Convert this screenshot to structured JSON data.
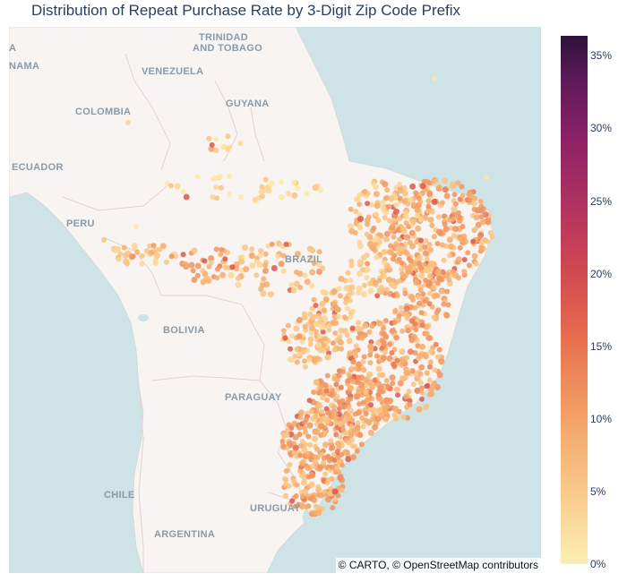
{
  "title": "Distribution of Repeat Purchase Rate by 3-Digit Zip Code Prefix",
  "map": {
    "basemap": "carto-positron",
    "attribution": "© CARTO, © OpenStreetMap contributors",
    "country_labels": [
      {
        "id": "trinidad",
        "text": "TRINIDAD"
      },
      {
        "id": "tobago",
        "text": "AND TOBAGO"
      },
      {
        "id": "panama",
        "text": "NAMA"
      },
      {
        "id": "a",
        "text": "A"
      },
      {
        "id": "venezuela",
        "text": "VENEZUELA"
      },
      {
        "id": "guyana",
        "text": "GUYANA"
      },
      {
        "id": "colombia",
        "text": "COLOMBIA"
      },
      {
        "id": "ecuador",
        "text": "ECUADOR"
      },
      {
        "id": "peru",
        "text": "PERU"
      },
      {
        "id": "brazil",
        "text": "BRAZIL"
      },
      {
        "id": "bolivia",
        "text": "BOLIVIA"
      },
      {
        "id": "paraguay",
        "text": "PARAGUAY"
      },
      {
        "id": "chile",
        "text": "CHILE"
      },
      {
        "id": "uruguay",
        "text": "URUGUAY"
      },
      {
        "id": "argentina",
        "text": "ARGENTINA"
      }
    ],
    "colors": {
      "ocean": "#cde3e6",
      "land": "#f7f4f1",
      "border": "#e6cfd3"
    }
  },
  "colorbar": {
    "colorscale": "Magma_r",
    "ticks": [
      "0%",
      "5%",
      "10%",
      "15%",
      "20%",
      "25%",
      "30%",
      "35%"
    ]
  },
  "chart_data": {
    "type": "scatter",
    "title": "Distribution of Repeat Purchase Rate by 3-Digit Zip Code Prefix",
    "color_range": [
      0,
      0.36
    ],
    "tick_values": [
      0,
      0.05,
      0.1,
      0.15,
      0.2,
      0.25,
      0.3,
      0.35
    ],
    "legend": "colorbar right",
    "marker_colors": [
      "#fce7a8",
      "#fbd695",
      "#f9c382",
      "#f6ad6f",
      "#f19460",
      "#e87956",
      "#d95b51"
    ]
  }
}
